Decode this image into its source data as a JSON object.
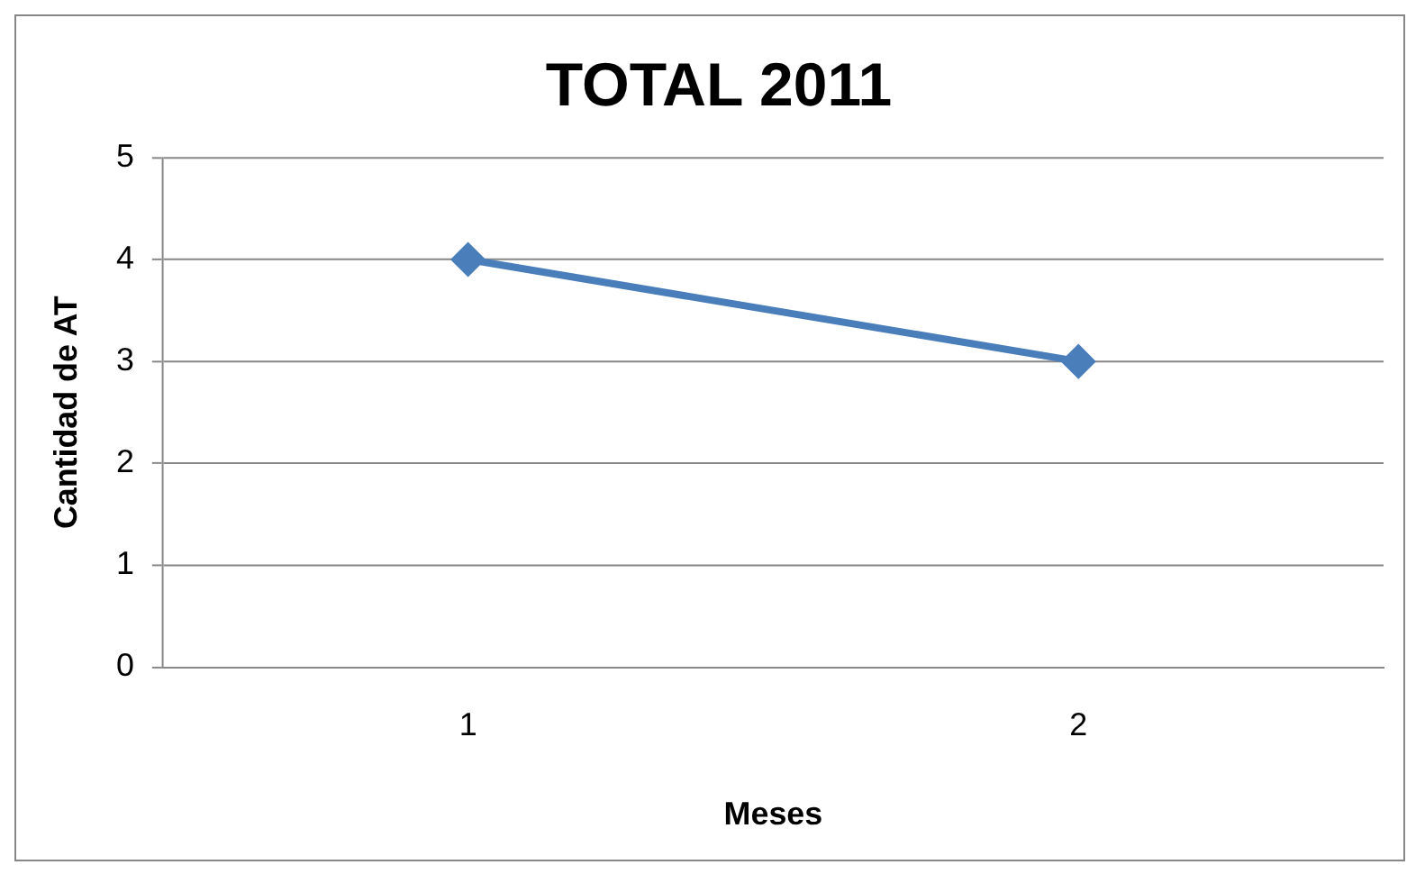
{
  "chart_data": {
    "type": "line",
    "title": "TOTAL 2011",
    "xlabel": "Meses",
    "ylabel": "Cantidad de AT",
    "categories": [
      "1",
      "2"
    ],
    "series": [
      {
        "color": "#4a7ebb",
        "values": [
          4,
          3
        ]
      }
    ],
    "ylim": [
      0,
      5
    ],
    "yticks": [
      0,
      1,
      2,
      3,
      4,
      5
    ],
    "grid": "y",
    "legend": false,
    "marker": "diamond",
    "line_style": "solid"
  }
}
